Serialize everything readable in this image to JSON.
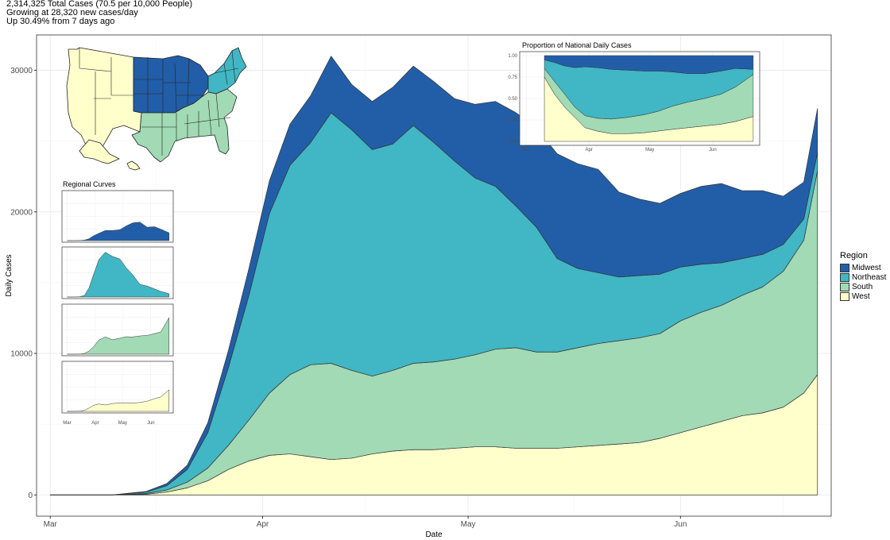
{
  "header": {
    "line1": "2,314,325 Total Cases (70.5 per 10,000 People)",
    "line2": "Growing at 28,320 new cases/day",
    "line3": "Up 30.49% from 7 days ago"
  },
  "colors": {
    "Midwest": "#225ea8",
    "Northeast": "#41b6c4",
    "South": "#a1dab4",
    "West": "#ffffcc"
  },
  "chart_data": [
    {
      "id": "main",
      "type": "area",
      "stacked": true,
      "title": "",
      "xlabel": "Date",
      "ylabel": "Daily Cases",
      "x": [
        "2020-03-01",
        "2020-03-05",
        "2020-03-10",
        "2020-03-15",
        "2020-03-18",
        "2020-03-21",
        "2020-03-24",
        "2020-03-27",
        "2020-03-30",
        "2020-04-02",
        "2020-04-05",
        "2020-04-08",
        "2020-04-11",
        "2020-04-14",
        "2020-04-17",
        "2020-04-20",
        "2020-04-23",
        "2020-04-26",
        "2020-04-29",
        "2020-05-02",
        "2020-05-05",
        "2020-05-08",
        "2020-05-11",
        "2020-05-14",
        "2020-05-17",
        "2020-05-20",
        "2020-05-23",
        "2020-05-26",
        "2020-05-29",
        "2020-06-01",
        "2020-06-04",
        "2020-06-07",
        "2020-06-10",
        "2020-06-13",
        "2020-06-16",
        "2020-06-19",
        "2020-06-21"
      ],
      "xticks": [
        "Mar",
        "Apr",
        "May",
        "Jun"
      ],
      "yticks": [
        0,
        10000,
        20000,
        30000
      ],
      "ylim": [
        -1500,
        32500
      ],
      "legend_title": "Region",
      "legend_position": "right",
      "grid": true,
      "series": [
        {
          "name": "West",
          "values": [
            0,
            0,
            0,
            50,
            200,
            500,
            1000,
            1800,
            2400,
            2800,
            2900,
            2700,
            2500,
            2600,
            2900,
            3100,
            3200,
            3200,
            3300,
            3400,
            3400,
            3300,
            3300,
            3300,
            3400,
            3500,
            3600,
            3700,
            4000,
            4400,
            4800,
            5200,
            5600,
            5800,
            6200,
            7200,
            8500
          ]
        },
        {
          "name": "South",
          "values": [
            0,
            0,
            0,
            50,
            150,
            400,
            900,
            1700,
            2900,
            4400,
            5600,
            6500,
            6800,
            6200,
            5500,
            5700,
            6100,
            6200,
            6300,
            6500,
            6900,
            7100,
            6800,
            6800,
            7000,
            7200,
            7300,
            7400,
            7400,
            7900,
            8100,
            8200,
            8500,
            8900,
            9600,
            10800,
            14400
          ]
        },
        {
          "name": "Northeast",
          "values": [
            0,
            0,
            0,
            100,
            300,
            900,
            2500,
            5500,
            8800,
            12700,
            14800,
            15700,
            17700,
            17000,
            16000,
            16000,
            16800,
            15500,
            14000,
            12500,
            11500,
            10000,
            8800,
            6600,
            5600,
            5000,
            4500,
            4400,
            4200,
            3800,
            3400,
            3000,
            2600,
            2300,
            1900,
            1500,
            1300
          ]
        },
        {
          "name": "Midwest",
          "values": [
            0,
            0,
            0,
            50,
            150,
            300,
            700,
            1200,
            1900,
            2300,
            2900,
            3300,
            4000,
            3200,
            3400,
            4000,
            4200,
            4300,
            4400,
            5200,
            6000,
            6600,
            7000,
            7400,
            7400,
            7300,
            6000,
            5400,
            5000,
            5200,
            5500,
            5600,
            4800,
            4500,
            3400,
            2600,
            3100
          ]
        }
      ]
    },
    {
      "id": "proportion",
      "type": "area",
      "stacked": true,
      "title": "Proportion of National Daily Cases",
      "xticks": [
        "Mar",
        "Apr",
        "May",
        "Jun"
      ],
      "yticks": [
        "0.00",
        "0.25",
        "0.50",
        "0.75",
        "1.00"
      ],
      "x": [
        "2020-03-10",
        "2020-03-15",
        "2020-03-20",
        "2020-03-25",
        "2020-03-30",
        "2020-04-05",
        "2020-04-12",
        "2020-04-20",
        "2020-04-28",
        "2020-05-05",
        "2020-05-12",
        "2020-05-20",
        "2020-05-28",
        "2020-06-05",
        "2020-06-12",
        "2020-06-21"
      ],
      "series": [
        {
          "name": "West",
          "values": [
            0.75,
            0.55,
            0.4,
            0.28,
            0.16,
            0.12,
            0.09,
            0.09,
            0.1,
            0.12,
            0.14,
            0.16,
            0.18,
            0.2,
            0.23,
            0.29
          ]
        },
        {
          "name": "South",
          "values": [
            0.1,
            0.15,
            0.15,
            0.12,
            0.14,
            0.15,
            0.17,
            0.19,
            0.21,
            0.23,
            0.27,
            0.3,
            0.32,
            0.35,
            0.4,
            0.49
          ]
        },
        {
          "name": "Northeast",
          "values": [
            0.1,
            0.22,
            0.33,
            0.46,
            0.57,
            0.59,
            0.58,
            0.55,
            0.51,
            0.47,
            0.4,
            0.33,
            0.29,
            0.27,
            0.22,
            0.06
          ]
        },
        {
          "name": "Midwest",
          "values": [
            0.05,
            0.08,
            0.12,
            0.14,
            0.13,
            0.14,
            0.16,
            0.17,
            0.18,
            0.18,
            0.19,
            0.21,
            0.21,
            0.18,
            0.15,
            0.16
          ]
        }
      ]
    },
    {
      "id": "regional",
      "type": "area",
      "title": "Regional Curves",
      "xticks": [
        "Mar",
        "Apr",
        "May",
        "Jun"
      ],
      "x": [
        "2020-03-01",
        "2020-03-10",
        "2020-03-15",
        "2020-03-20",
        "2020-03-25",
        "2020-03-30",
        "2020-04-05",
        "2020-04-12",
        "2020-04-20",
        "2020-04-28",
        "2020-05-05",
        "2020-05-12",
        "2020-05-20",
        "2020-05-28",
        "2020-06-05",
        "2020-06-12",
        "2020-06-21"
      ],
      "series": [
        {
          "name": "Midwest",
          "values": [
            0,
            0,
            50,
            200,
            700,
            1900,
            2900,
            4000,
            4000,
            4300,
            5800,
            7000,
            7300,
            5300,
            5500,
            4500,
            3100
          ]
        },
        {
          "name": "Northeast",
          "values": [
            0,
            0,
            100,
            600,
            3500,
            8800,
            14800,
            17700,
            16000,
            15000,
            11500,
            8800,
            5000,
            4300,
            3200,
            2200,
            1300
          ]
        },
        {
          "name": "South",
          "values": [
            0,
            0,
            50,
            300,
            1200,
            2900,
            5600,
            6800,
            5700,
            6300,
            6900,
            6800,
            7200,
            7400,
            8100,
            8800,
            14400
          ]
        },
        {
          "name": "West",
          "values": [
            0,
            0,
            50,
            400,
            1300,
            2400,
            2900,
            2500,
            3100,
            3300,
            3400,
            3300,
            3500,
            4000,
            5000,
            5700,
            8500
          ]
        }
      ]
    }
  ]
}
